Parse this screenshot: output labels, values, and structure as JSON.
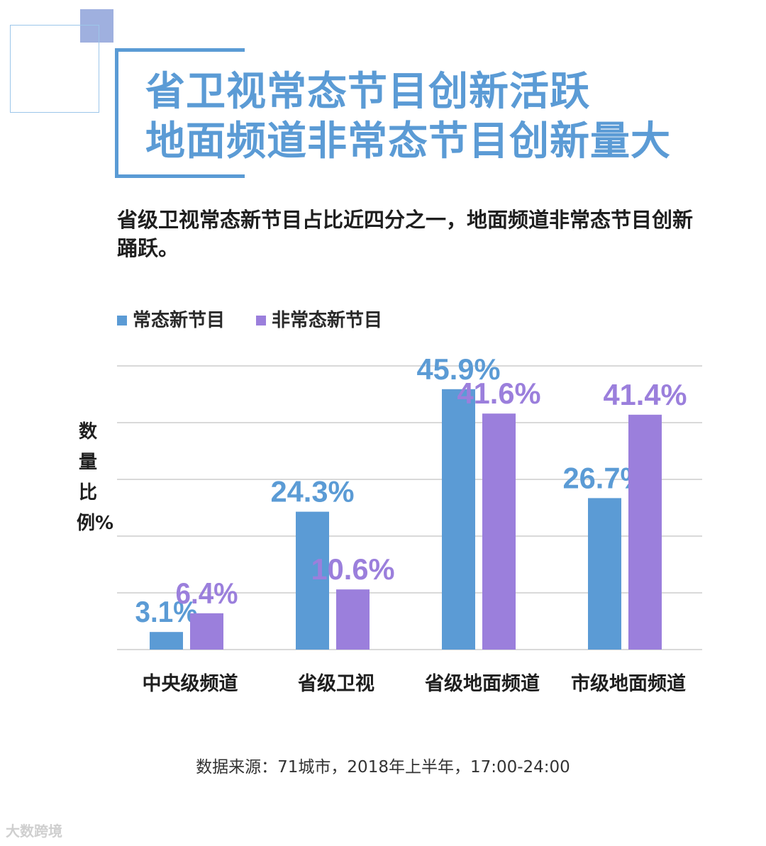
{
  "title": {
    "line1": "省卫视常态节目创新活跃",
    "line2": "地面频道非常态节目创新量大"
  },
  "subtitle": "省级卫视常态新节目占比近四分之一，地面频道非常态节目创新踊跃。",
  "source": "数据来源：71城市，2018年上半年，17:00-24:00",
  "watermark": "大数跨境",
  "colors": {
    "accent": "#5b9bd5",
    "series_regular": "#5b9bd5",
    "series_irregular": "#9b7fdc",
    "grid": "#d9d9d9"
  },
  "chart_data": {
    "type": "bar",
    "title": "",
    "xlabel": "",
    "ylabel": "数量比例%",
    "ylim": [
      0,
      50
    ],
    "grid": true,
    "legend_position": "top-left",
    "categories": [
      "中央级频道",
      "省级卫视",
      "省级地面频道",
      "市级地面频道"
    ],
    "series": [
      {
        "name": "常态新节目",
        "values": [
          3.1,
          24.3,
          45.9,
          26.7
        ],
        "labels": [
          "3.1%",
          "24.3%",
          "45.9%",
          "26.7%"
        ]
      },
      {
        "name": "非常态新节目",
        "values": [
          6.4,
          10.6,
          41.6,
          41.4
        ],
        "labels": [
          "6.4%",
          "10.6%",
          "41.6%",
          "41.4%"
        ]
      }
    ]
  }
}
